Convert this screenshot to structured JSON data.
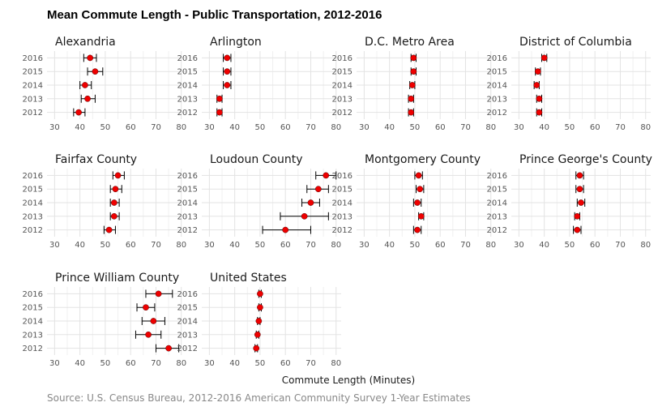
{
  "chart_data": {
    "type": "scatter",
    "title": "Mean Commute Length - Public Transportation, 2012-2016",
    "xlabel": "Commute Length (Minutes)",
    "caption": "Source: U.S. Census Bureau, 2012-2016 American Community Survey 1-Year Estimates",
    "xlim": [
      27,
      82
    ],
    "xticks": [
      30,
      40,
      50,
      60,
      70,
      80
    ],
    "years": [
      "2016",
      "2015",
      "2014",
      "2013",
      "2012"
    ],
    "grid": true,
    "colors": {
      "point": "#ee0000",
      "errorbar": "#000000"
    },
    "facets": [
      {
        "name": "Alexandria",
        "points": [
          {
            "year": "2016",
            "value": 44,
            "low": 41.5,
            "high": 46.5
          },
          {
            "year": "2015",
            "value": 46,
            "low": 43,
            "high": 49
          },
          {
            "year": "2014",
            "value": 42,
            "low": 40,
            "high": 44.5
          },
          {
            "year": "2013",
            "value": 43,
            "low": 40.5,
            "high": 46
          },
          {
            "year": "2012",
            "value": 39.5,
            "low": 37.5,
            "high": 42
          }
        ]
      },
      {
        "name": "Arlington",
        "points": [
          {
            "year": "2016",
            "value": 37,
            "low": 35.5,
            "high": 38.5
          },
          {
            "year": "2015",
            "value": 37,
            "low": 35.5,
            "high": 38.5
          },
          {
            "year": "2014",
            "value": 37,
            "low": 35.5,
            "high": 38.5
          },
          {
            "year": "2013",
            "value": 34,
            "low": 33,
            "high": 35
          },
          {
            "year": "2012",
            "value": 34,
            "low": 33,
            "high": 35
          }
        ]
      },
      {
        "name": "D.C. Metro Area",
        "points": [
          {
            "year": "2016",
            "value": 49.5,
            "low": 48.5,
            "high": 50.5
          },
          {
            "year": "2015",
            "value": 49.5,
            "low": 48.5,
            "high": 50.5
          },
          {
            "year": "2014",
            "value": 49,
            "low": 48,
            "high": 50
          },
          {
            "year": "2013",
            "value": 48.5,
            "low": 47.5,
            "high": 49.5
          },
          {
            "year": "2012",
            "value": 48.5,
            "low": 47.5,
            "high": 49.5
          }
        ]
      },
      {
        "name": "District of Columbia",
        "points": [
          {
            "year": "2016",
            "value": 40,
            "low": 39,
            "high": 41
          },
          {
            "year": "2015",
            "value": 37.5,
            "low": 36.5,
            "high": 38.5
          },
          {
            "year": "2014",
            "value": 37,
            "low": 36,
            "high": 38
          },
          {
            "year": "2013",
            "value": 38,
            "low": 37,
            "high": 39
          },
          {
            "year": "2012",
            "value": 38,
            "low": 37,
            "high": 39
          }
        ]
      },
      {
        "name": "Fairfax County",
        "points": [
          {
            "year": "2016",
            "value": 55,
            "low": 53,
            "high": 57.5
          },
          {
            "year": "2015",
            "value": 54,
            "low": 52,
            "high": 56.5
          },
          {
            "year": "2014",
            "value": 53.5,
            "low": 52,
            "high": 55.5
          },
          {
            "year": "2013",
            "value": 53.5,
            "low": 52,
            "high": 55.5
          },
          {
            "year": "2012",
            "value": 51.5,
            "low": 49.5,
            "high": 54
          }
        ]
      },
      {
        "name": "Loudoun County",
        "points": [
          {
            "year": "2016",
            "value": 76,
            "low": 72,
            "high": 80
          },
          {
            "year": "2015",
            "value": 73,
            "low": 68.5,
            "high": 77
          },
          {
            "year": "2014",
            "value": 70,
            "low": 66.5,
            "high": 73.5
          },
          {
            "year": "2013",
            "value": 67.5,
            "low": 58,
            "high": 77
          },
          {
            "year": "2012",
            "value": 60,
            "low": 51,
            "high": 70
          }
        ]
      },
      {
        "name": "Montgomery County",
        "points": [
          {
            "year": "2016",
            "value": 51.5,
            "low": 50,
            "high": 53
          },
          {
            "year": "2015",
            "value": 52,
            "low": 50.5,
            "high": 53.5
          },
          {
            "year": "2014",
            "value": 51,
            "low": 49.5,
            "high": 52.5
          },
          {
            "year": "2013",
            "value": 52.5,
            "low": 51.5,
            "high": 53.5
          },
          {
            "year": "2012",
            "value": 51,
            "low": 49.5,
            "high": 52.5
          }
        ]
      },
      {
        "name": "Prince George's County",
        "points": [
          {
            "year": "2016",
            "value": 54,
            "low": 52.5,
            "high": 55.5
          },
          {
            "year": "2015",
            "value": 54,
            "low": 52.5,
            "high": 55.5
          },
          {
            "year": "2014",
            "value": 54.5,
            "low": 53,
            "high": 56
          },
          {
            "year": "2013",
            "value": 53,
            "low": 52,
            "high": 54
          },
          {
            "year": "2012",
            "value": 53,
            "low": 51.5,
            "high": 54.5
          }
        ]
      },
      {
        "name": "Prince William County",
        "points": [
          {
            "year": "2016",
            "value": 71,
            "low": 66,
            "high": 76.5
          },
          {
            "year": "2015",
            "value": 66,
            "low": 62.5,
            "high": 69.5
          },
          {
            "year": "2014",
            "value": 69,
            "low": 64.5,
            "high": 73.5
          },
          {
            "year": "2013",
            "value": 67,
            "low": 62,
            "high": 72
          },
          {
            "year": "2012",
            "value": 75,
            "low": 70,
            "high": 79
          }
        ]
      },
      {
        "name": "United States",
        "points": [
          {
            "year": "2016",
            "value": 50,
            "low": 49.5,
            "high": 50.5
          },
          {
            "year": "2015",
            "value": 50,
            "low": 49.5,
            "high": 50.5
          },
          {
            "year": "2014",
            "value": 49.5,
            "low": 49,
            "high": 50
          },
          {
            "year": "2013",
            "value": 49,
            "low": 48.5,
            "high": 49.5
          },
          {
            "year": "2012",
            "value": 48.5,
            "low": 48,
            "high": 49
          }
        ]
      }
    ]
  }
}
